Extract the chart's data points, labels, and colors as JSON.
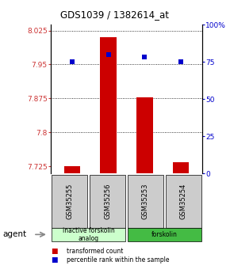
{
  "title": "GDS1039 / 1382614_at",
  "samples": [
    "GSM35255",
    "GSM35256",
    "GSM35253",
    "GSM35254"
  ],
  "bar_values": [
    7.726,
    8.01,
    7.877,
    7.735
  ],
  "percentile_values": [
    75,
    80,
    78,
    75
  ],
  "ylim_left": [
    7.71,
    8.038
  ],
  "ylim_right": [
    0,
    100
  ],
  "yticks_left": [
    7.725,
    7.8,
    7.875,
    7.95,
    8.025
  ],
  "yticks_right": [
    0,
    25,
    50,
    75,
    100
  ],
  "ytick_labels_left": [
    "7.725",
    "7.8",
    "7.875",
    "7.95",
    "8.025"
  ],
  "ytick_labels_right": [
    "0",
    "25",
    "50",
    "75",
    "100%"
  ],
  "bar_color": "#cc0000",
  "percentile_color": "#0000cc",
  "bar_bottom": 7.71,
  "groups": [
    {
      "label": "inactive forskolin\nanalog",
      "samples": [
        0,
        1
      ],
      "color": "#ccffcc"
    },
    {
      "label": "forskolin",
      "samples": [
        2,
        3
      ],
      "color": "#44bb44"
    }
  ],
  "agent_label": "agent",
  "legend_bar_label": "transformed count",
  "legend_pct_label": "percentile rank within the sample",
  "background_color": "#ffffff",
  "sample_box_color": "#cccccc"
}
